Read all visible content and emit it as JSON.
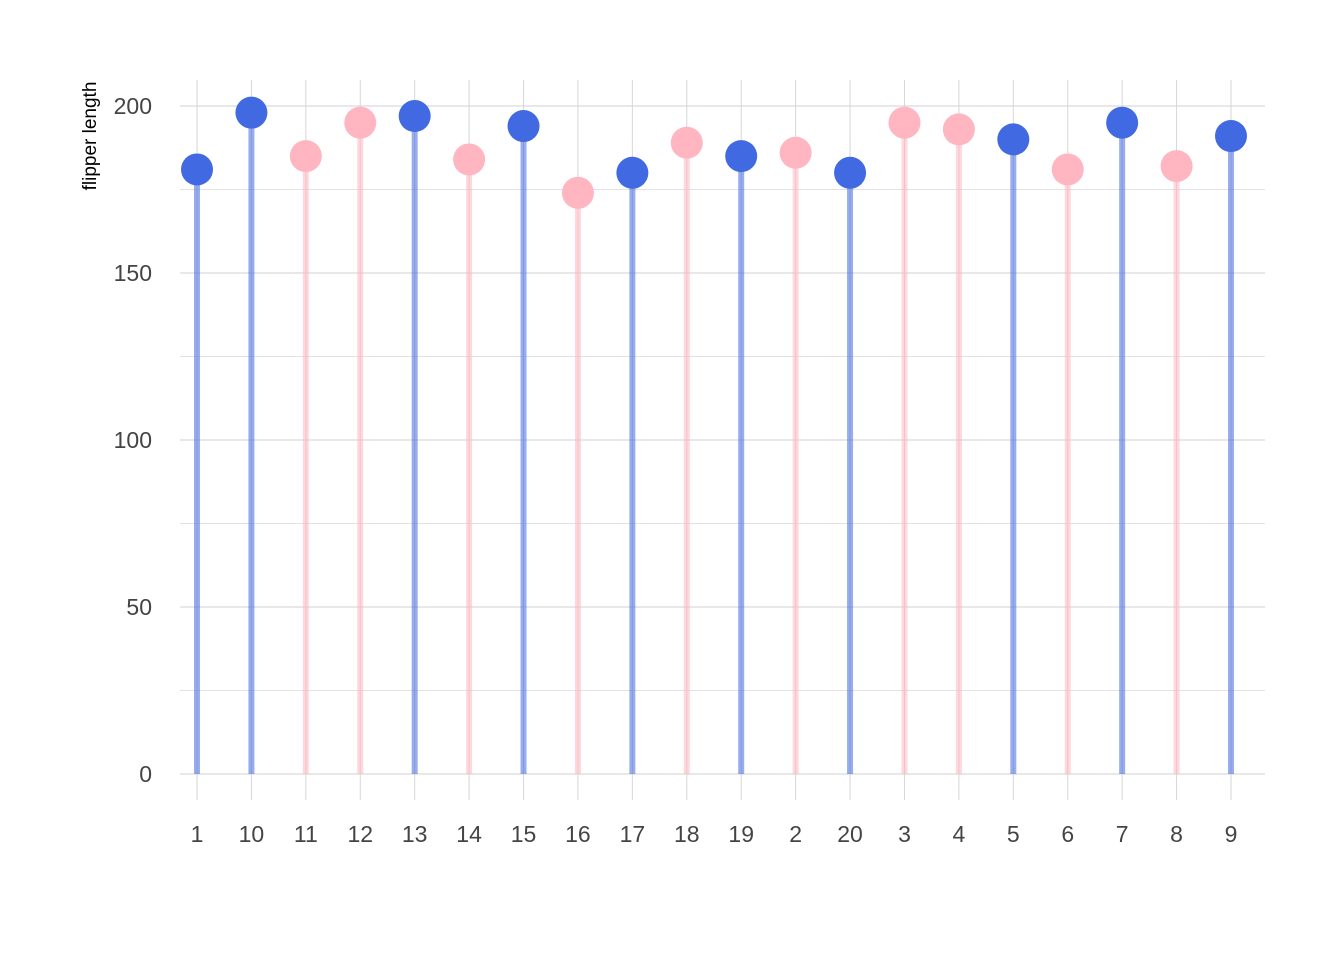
{
  "chart_data": {
    "type": "lollipop",
    "title": "",
    "xlabel": "",
    "ylabel": "flipper length",
    "ylim": [
      0,
      200
    ],
    "yticks": [
      0,
      50,
      100,
      150,
      200
    ],
    "grid": true,
    "colors": {
      "blue": "#4169E1",
      "pink": "#FFB6C1"
    },
    "categories": [
      "1",
      "10",
      "11",
      "12",
      "13",
      "14",
      "15",
      "16",
      "17",
      "18",
      "19",
      "2",
      "20",
      "3",
      "4",
      "5",
      "6",
      "7",
      "8",
      "9"
    ],
    "values": [
      181,
      198,
      185,
      195,
      197,
      184,
      194,
      174,
      180,
      189,
      185,
      186,
      180,
      195,
      193,
      190,
      181,
      195,
      182,
      191
    ],
    "point_colors": [
      "blue",
      "blue",
      "pink",
      "pink",
      "blue",
      "pink",
      "blue",
      "pink",
      "blue",
      "pink",
      "blue",
      "pink",
      "blue",
      "pink",
      "pink",
      "blue",
      "pink",
      "blue",
      "pink",
      "blue"
    ]
  }
}
